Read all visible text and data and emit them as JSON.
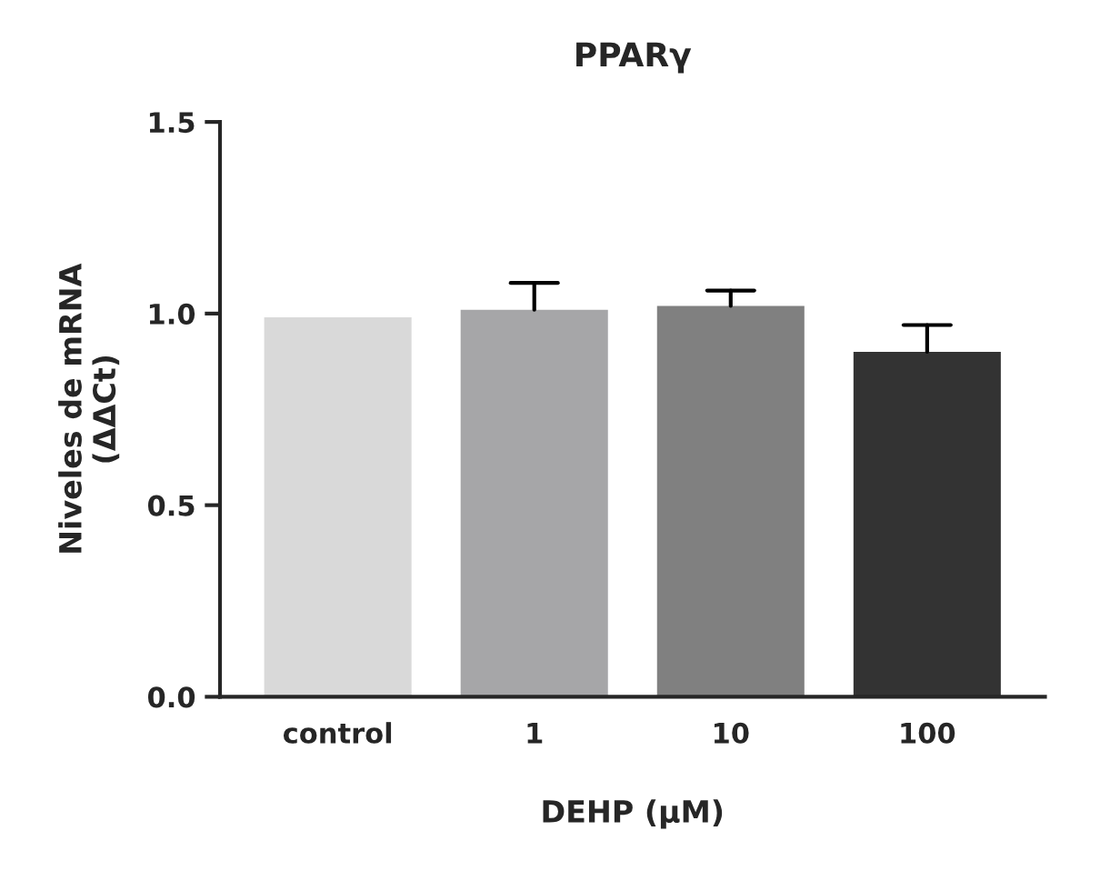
{
  "chart_data": {
    "type": "bar",
    "title": "PPARγ",
    "xlabel": "DEHP (μM)",
    "ylabel": "Niveles de mRNA\n(ΔΔCt)",
    "categories": [
      "control",
      "1",
      "10",
      "100"
    ],
    "values": [
      0.99,
      1.01,
      1.02,
      0.9
    ],
    "colors": [
      "#d9d9d9",
      "#a6a6a8",
      "#808080",
      "#333333"
    ],
    "errors": [
      null,
      [
        1.01,
        1.08
      ],
      [
        1.02,
        1.06
      ],
      [
        0.9,
        0.97
      ]
    ],
    "ylim": [
      0,
      1.5
    ],
    "yticks": [
      {
        "value": 0,
        "label": "0.0"
      },
      {
        "value": 0.5,
        "label": "0.5"
      },
      {
        "value": 1.0,
        "label": "1.0"
      },
      {
        "value": 1.5,
        "label": "1.5"
      }
    ],
    "grid": false,
    "legend": false
  }
}
